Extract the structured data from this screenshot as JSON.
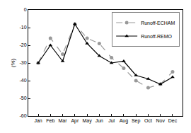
{
  "chart_data": {
    "type": "line",
    "y_label": "(%)",
    "categories": [
      "Jan",
      "Feb",
      "Mar",
      "Apr",
      "May",
      "Jun",
      "Jul",
      "Aug",
      "Sep",
      "Oct",
      "Nov",
      "Dec"
    ],
    "series": [
      {
        "name": "Runoff-ECHAM",
        "color": "#999999",
        "marker": "circle",
        "line_style": "dash",
        "values": [
          -30,
          -16,
          -25,
          -8,
          -16,
          -19,
          -27,
          -33,
          -40,
          -44,
          -42,
          -35
        ]
      },
      {
        "name": "Runoff-REMO",
        "color": "#000000",
        "marker": "triangle-up",
        "line_style": "solid",
        "values": [
          -30,
          -20,
          -29,
          -8,
          -19,
          -26,
          -30,
          -29,
          -37,
          -39,
          -42,
          -38
        ]
      }
    ],
    "ylim": [
      -60,
      0
    ],
    "yticks": [
      -60,
      -50,
      -40,
      -30,
      -20,
      -10,
      0
    ],
    "grid": false,
    "legend": "top right"
  }
}
